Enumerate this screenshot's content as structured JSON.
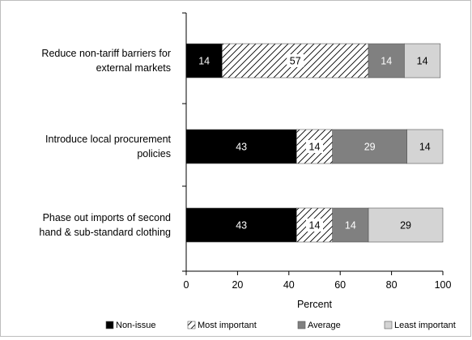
{
  "chart_data": {
    "type": "bar",
    "orientation": "horizontal",
    "stacked": true,
    "categories": [
      [
        "Reduce non-tariff barriers for",
        "external markets"
      ],
      [
        "Introduce local procurement",
        "policies"
      ],
      [
        "Phase out imports of second",
        "hand & sub-standard clothing"
      ]
    ],
    "series": [
      {
        "name": "Non-issue",
        "values": [
          14,
          43,
          43
        ],
        "color": "#000000",
        "label_color": "#ffffff",
        "pattern": "solid"
      },
      {
        "name": "Most important",
        "values": [
          57,
          14,
          14
        ],
        "color": "#ffffff",
        "label_color": "#000000",
        "pattern": "hatch"
      },
      {
        "name": "Average",
        "values": [
          14,
          29,
          14
        ],
        "color": "#808080",
        "label_color": "#ffffff",
        "pattern": "solid"
      },
      {
        "name": "Least important",
        "values": [
          14,
          14,
          29
        ],
        "color": "#d4d4d4",
        "label_color": "#000000",
        "pattern": "solid"
      }
    ],
    "xlabel": "Percent",
    "xlim": [
      0,
      100
    ],
    "xticks": [
      0,
      20,
      40,
      60,
      80,
      100
    ],
    "grid": false,
    "legend_position": "bottom"
  }
}
